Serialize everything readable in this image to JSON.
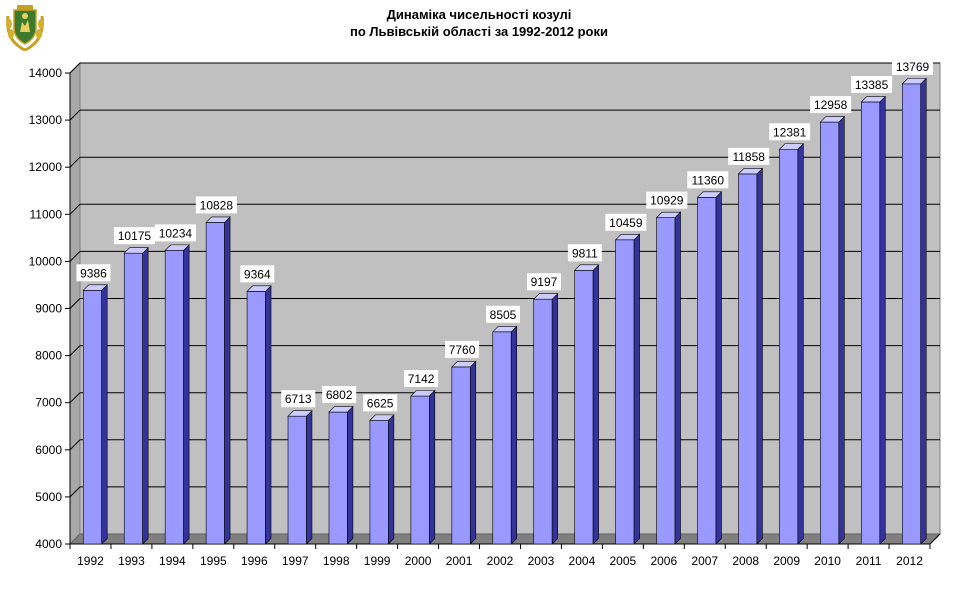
{
  "chart_data": {
    "type": "bar",
    "title": "Динаміка чисельності козулі",
    "subtitle": "по Львівській області за 1992-2012 роки",
    "xlabel": "",
    "ylabel": "",
    "categories": [
      "1992",
      "1993",
      "1994",
      "1995",
      "1996",
      "1997",
      "1998",
      "1999",
      "2000",
      "2001",
      "2002",
      "2003",
      "2004",
      "2005",
      "2006",
      "2007",
      "2008",
      "2009",
      "2010",
      "2011",
      "2012"
    ],
    "values": [
      9386,
      10175,
      10234,
      10828,
      9364,
      6713,
      6802,
      6625,
      7142,
      7760,
      8505,
      9197,
      9811,
      10459,
      10929,
      11360,
      11858,
      12381,
      12958,
      13385,
      13769
    ],
    "ylim": [
      4000,
      14000
    ],
    "yticks": [
      "4000",
      "5000",
      "6000",
      "7000",
      "8000",
      "9000",
      "10000",
      "11000",
      "12000",
      "13000",
      "14000"
    ],
    "grid": true,
    "style": "3d",
    "colors": {
      "bar_face": "#9999ff",
      "bar_side": "#333399",
      "bar_top": "#ccccff",
      "wall": "#c0c0c0",
      "floor": "#808080",
      "grid": "#000000"
    }
  }
}
